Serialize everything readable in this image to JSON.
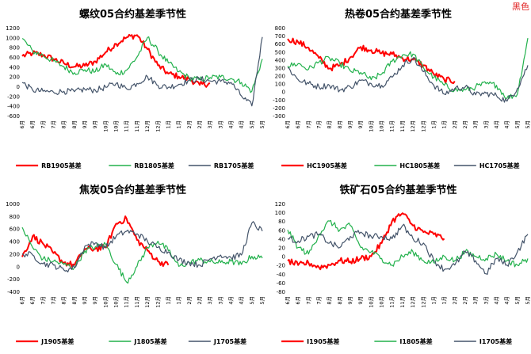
{
  "corner_label": "黑色",
  "colors": {
    "red": "#ff0000",
    "green": "#22b14c",
    "blue": "#44546a"
  },
  "month_ticks": [
    "6月",
    "6月",
    "7月",
    "7月",
    "8月",
    "8月",
    "9月",
    "9月",
    "10月",
    "10月",
    "11月",
    "11月",
    "12月",
    "12月",
    "1月",
    "1月",
    "2月",
    "2月",
    "3月",
    "3月",
    "4月",
    "4月",
    "5月",
    "5月"
  ],
  "chart_data": [
    {
      "type": "line",
      "title": "螺纹05合约基差季节性",
      "ylim": [
        -600,
        1200
      ],
      "yticks": [
        -600,
        -400,
        -200,
        0,
        200,
        400,
        600,
        800,
        1000,
        1200
      ],
      "grid": false,
      "legend_position": "bottom",
      "x_points": 24,
      "series": [
        {
          "name": "RB1905基差",
          "color": "red",
          "values": [
            620,
            680,
            640,
            560,
            470,
            400,
            420,
            510,
            700,
            870,
            1000,
            1050,
            760,
            430,
            260,
            200,
            150,
            30,
            60,
            null,
            null,
            null,
            null,
            null
          ]
        },
        {
          "name": "RB1805基差",
          "color": "green",
          "values": [
            980,
            720,
            630,
            520,
            400,
            280,
            340,
            300,
            450,
            250,
            330,
            600,
            1000,
            720,
            480,
            300,
            170,
            140,
            180,
            190,
            160,
            80,
            -100,
            560
          ]
        },
        {
          "name": "RB1705基差",
          "color": "blue",
          "values": [
            80,
            -80,
            -100,
            -120,
            -100,
            -110,
            -60,
            -80,
            -20,
            60,
            -50,
            60,
            200,
            20,
            -20,
            40,
            120,
            150,
            110,
            100,
            80,
            -200,
            -400,
            1010
          ]
        }
      ]
    },
    {
      "type": "line",
      "title": "热卷05合约基差季节性",
      "ylim": [
        -300,
        800
      ],
      "yticks": [
        -300,
        -200,
        -100,
        0,
        100,
        200,
        300,
        400,
        500,
        600,
        700,
        800
      ],
      "grid": false,
      "legend_position": "bottom",
      "x_points": 24,
      "series": [
        {
          "name": "HC1905基差",
          "color": "red",
          "values": [
            660,
            620,
            550,
            420,
            290,
            330,
            430,
            560,
            520,
            480,
            470,
            420,
            400,
            330,
            220,
            150,
            130,
            null,
            null,
            null,
            null,
            null,
            null,
            null
          ]
        },
        {
          "name": "HC1805基差",
          "color": "green",
          "values": [
            320,
            350,
            280,
            370,
            420,
            350,
            260,
            240,
            150,
            220,
            380,
            460,
            470,
            300,
            180,
            80,
            20,
            20,
            60,
            100,
            80,
            -80,
            -30,
            670
          ]
        },
        {
          "name": "HC1705基差",
          "color": "blue",
          "values": [
            300,
            150,
            100,
            60,
            80,
            20,
            60,
            140,
            100,
            80,
            180,
            330,
            420,
            250,
            80,
            -30,
            40,
            60,
            -40,
            -20,
            -50,
            -120,
            40,
            330
          ]
        }
      ]
    },
    {
      "type": "line",
      "title": "焦炭05合约基差季节性",
      "ylim": [
        -400,
        1000
      ],
      "yticks": [
        -400,
        -200,
        0,
        200,
        400,
        600,
        800,
        1000
      ],
      "grid": false,
      "legend_position": "bottom",
      "x_points": 24,
      "series": [
        {
          "name": "J1905基差",
          "color": "red",
          "values": [
            150,
            480,
            360,
            210,
            60,
            20,
            270,
            280,
            300,
            680,
            760,
            420,
            250,
            80,
            20,
            null,
            null,
            null,
            null,
            null,
            null,
            null,
            null,
            null
          ]
        },
        {
          "name": "J1805基差",
          "color": "green",
          "values": [
            620,
            300,
            120,
            80,
            30,
            -20,
            250,
            310,
            350,
            30,
            -250,
            0,
            300,
            400,
            250,
            0,
            60,
            100,
            70,
            60,
            80,
            30,
            160,
            130
          ]
        },
        {
          "name": "J1705基差",
          "color": "blue",
          "values": [
            200,
            180,
            40,
            20,
            -60,
            -20,
            320,
            370,
            300,
            480,
            560,
            520,
            400,
            300,
            230,
            100,
            60,
            20,
            120,
            180,
            140,
            180,
            690,
            560
          ]
        }
      ]
    },
    {
      "type": "line",
      "title": "铁矿石05合约基差季节性",
      "ylim": [
        -80,
        120
      ],
      "yticks": [
        -80,
        -60,
        -40,
        -20,
        0,
        20,
        40,
        60,
        80,
        100,
        120
      ],
      "grid": false,
      "legend_position": "bottom",
      "x_points": 24,
      "series": [
        {
          "name": "I1905基差",
          "color": "red",
          "values": [
            -10,
            -20,
            -15,
            -25,
            -20,
            -10,
            -12,
            -5,
            0,
            30,
            80,
            98,
            70,
            55,
            50,
            40,
            null,
            null,
            null,
            null,
            null,
            null,
            null,
            null
          ]
        },
        {
          "name": "I1805基差",
          "color": "green",
          "values": [
            60,
            20,
            5,
            50,
            80,
            60,
            70,
            20,
            10,
            -5,
            -20,
            0,
            10,
            -10,
            -15,
            0,
            -10,
            10,
            0,
            -5,
            5,
            -10,
            -20,
            -5
          ]
        },
        {
          "name": "I1705基差",
          "color": "blue",
          "values": [
            40,
            35,
            45,
            50,
            30,
            20,
            45,
            55,
            45,
            45,
            40,
            70,
            40,
            30,
            -10,
            -30,
            -20,
            10,
            -10,
            -40,
            -5,
            -20,
            10,
            50
          ]
        }
      ]
    }
  ]
}
